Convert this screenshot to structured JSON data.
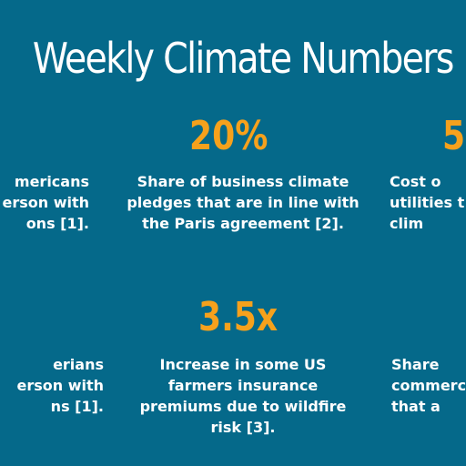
{
  "title": "Weekly Climate Numbers",
  "colors": {
    "background": "#05698a",
    "accent": "#f6a11c",
    "text": "#ffffff"
  },
  "stats": [
    {
      "position": "top-left",
      "value": "",
      "description": "mericans\nerson with\nons [1]."
    },
    {
      "position": "top-center",
      "value": "20%",
      "description": "Share of business climate\npledges that are in line with\nthe Paris agreement [2]."
    },
    {
      "position": "top-right",
      "value": "5",
      "description": "Cost o\nutilities t\nclim"
    },
    {
      "position": "bottom-left",
      "value": "",
      "description": "erians\nerson with\nns [1]."
    },
    {
      "position": "bottom-center",
      "value": "3.5x",
      "description": "Increase in some US\nfarmers insurance\npremiums due to wildfire\nrisk [3]."
    },
    {
      "position": "bottom-right",
      "value": "",
      "description": "Share\ncommerc\nthat a"
    }
  ]
}
